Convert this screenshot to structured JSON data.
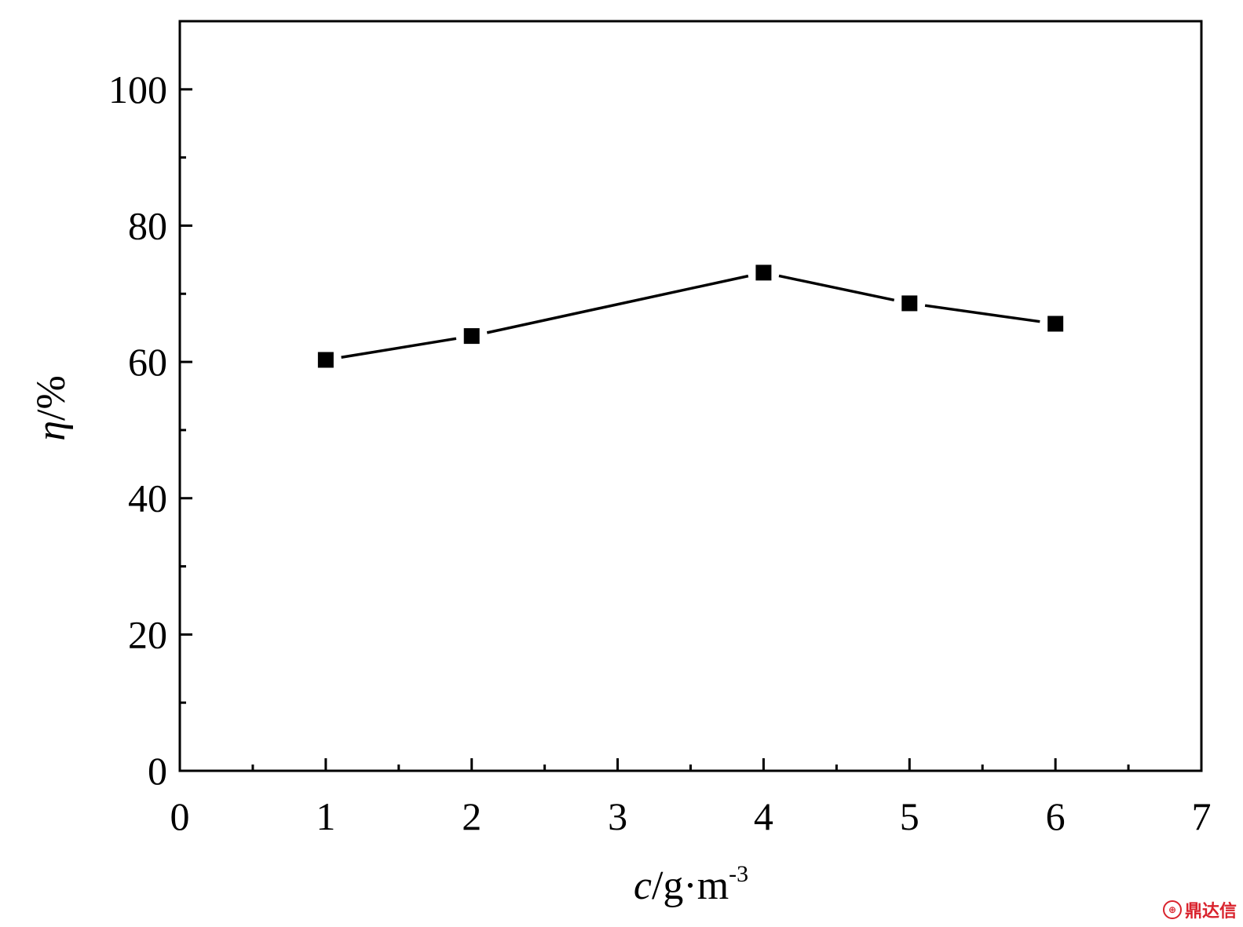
{
  "chart_data": {
    "type": "line",
    "title": "",
    "xlabel": {
      "var": "c",
      "unit": "/g·m",
      "exponent": "-3"
    },
    "ylabel": {
      "var": "η",
      "unit": "/%"
    },
    "xlim": [
      0,
      7
    ],
    "ylim": [
      0,
      110
    ],
    "xticks": [
      0,
      1,
      2,
      3,
      4,
      5,
      6,
      7
    ],
    "yticks": [
      0,
      20,
      40,
      60,
      80,
      100
    ],
    "x_minor_step": 0.5,
    "y_minor_step": 10,
    "grid": false,
    "legend": "none",
    "marker": "square",
    "line_style": "solid",
    "color": "#000000",
    "series": [
      {
        "x": [
          1,
          2,
          4,
          5,
          6
        ],
        "y": [
          60.3,
          63.8,
          73.1,
          68.6,
          65.6
        ]
      }
    ]
  },
  "watermark": {
    "icon": "seal-icon",
    "text": "鼎达信"
  }
}
